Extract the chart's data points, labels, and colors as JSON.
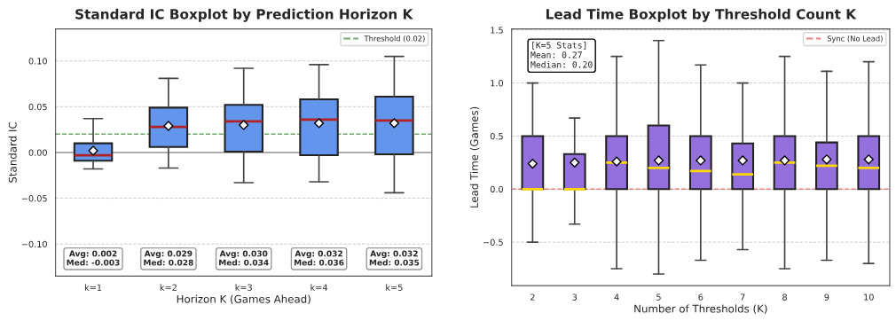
{
  "chart_data": [
    {
      "type": "box",
      "title": "Standard IC Boxplot by Prediction Horizon K",
      "xlabel": "Horizon K (Games Ahead)",
      "ylabel": "Standard IC",
      "categories": [
        "k=1",
        "k=2",
        "k=3",
        "k=4",
        "k=5"
      ],
      "series": [
        {
          "color": "#6495ed",
          "boxes": [
            {
              "low": -0.018,
              "q1": -0.009,
              "median": -0.003,
              "q3": 0.01,
              "high": 0.037,
              "mean": 0.002
            },
            {
              "low": -0.017,
              "q1": 0.006,
              "median": 0.028,
              "q3": 0.049,
              "high": 0.081,
              "mean": 0.029
            },
            {
              "low": -0.033,
              "q1": 0.001,
              "median": 0.034,
              "q3": 0.052,
              "high": 0.092,
              "mean": 0.03
            },
            {
              "low": -0.032,
              "q1": -0.003,
              "median": 0.036,
              "q3": 0.058,
              "high": 0.096,
              "mean": 0.032
            },
            {
              "low": -0.044,
              "q1": -0.002,
              "median": 0.035,
              "q3": 0.061,
              "high": 0.105,
              "mean": 0.032
            }
          ]
        }
      ],
      "ylim": [
        -0.135,
        0.135
      ],
      "yticks": [
        {
          "value": -0.1,
          "label": "−0.10"
        },
        {
          "value": -0.05,
          "label": "−0.05"
        },
        {
          "value": 0,
          "label": "0.00"
        },
        {
          "value": 0.05,
          "label": "0.05"
        },
        {
          "value": 0.1,
          "label": "0.10"
        }
      ],
      "ref_lines": [
        {
          "axis": "y",
          "value": 0.02,
          "label": "Threshold (0.02)",
          "color": "#6aaa6a",
          "line_style": "dashed"
        },
        {
          "axis": "y",
          "value": 0,
          "color": "#999999",
          "line_style": "solid"
        }
      ],
      "annotations": [
        "Avg: 0.002\nMed: -0.003",
        "Avg: 0.029\nMed: 0.028",
        "Avg: 0.030\nMed: 0.034",
        "Avg: 0.032\nMed: 0.036",
        "Avg: 0.032\nMed: 0.035"
      ],
      "grid": "y",
      "legend": "top right"
    },
    {
      "type": "box",
      "title": "Lead Time Boxplot by Threshold Count K",
      "xlabel": "Number of Thresholds (K)",
      "ylabel": "Lead Time (Games)",
      "categories": [
        "2",
        "3",
        "4",
        "5",
        "6",
        "7",
        "8",
        "9",
        "10"
      ],
      "series": [
        {
          "color": "#9370db",
          "boxes": [
            {
              "low": -0.5,
              "q1": 0,
              "median": 0,
              "q3": 0.5,
              "high": 1.0,
              "mean": 0.24
            },
            {
              "low": -0.33,
              "q1": 0,
              "median": 0,
              "q3": 0.33,
              "high": 0.67,
              "mean": 0.25
            },
            {
              "low": -0.75,
              "q1": 0,
              "median": 0.25,
              "q3": 0.5,
              "high": 1.25,
              "mean": 0.26
            },
            {
              "low": -0.8,
              "q1": 0,
              "median": 0.2,
              "q3": 0.6,
              "high": 1.4,
              "mean": 0.27
            },
            {
              "low": -0.67,
              "q1": 0,
              "median": 0.17,
              "q3": 0.5,
              "high": 1.17,
              "mean": 0.27
            },
            {
              "low": -0.57,
              "q1": 0,
              "median": 0.14,
              "q3": 0.43,
              "high": 1.0,
              "mean": 0.27
            },
            {
              "low": -0.75,
              "q1": 0,
              "median": 0.25,
              "q3": 0.5,
              "high": 1.25,
              "mean": 0.27
            },
            {
              "low": -0.67,
              "q1": 0,
              "median": 0.22,
              "q3": 0.44,
              "high": 1.11,
              "mean": 0.28
            },
            {
              "low": -0.7,
              "q1": 0,
              "median": 0.2,
              "q3": 0.5,
              "high": 1.2,
              "mean": 0.28
            }
          ]
        }
      ],
      "ylim": [
        -0.91,
        1.51
      ],
      "yticks": [
        {
          "value": -0.5,
          "label": "−0.5"
        },
        {
          "value": 0,
          "label": "0.0"
        },
        {
          "value": 0.5,
          "label": "0.5"
        },
        {
          "value": 1.0,
          "label": "1.0"
        },
        {
          "value": 1.5,
          "label": "1.5"
        }
      ],
      "ref_lines": [
        {
          "axis": "y",
          "value": 0,
          "label": "Sync (No Lead)",
          "color": "#f08080",
          "line_style": "dashed"
        }
      ],
      "annotations": [
        "[K=5 Stats]\nMean: 0.27\nMedian: 0.20"
      ],
      "grid": "y",
      "legend": "top right"
    }
  ]
}
